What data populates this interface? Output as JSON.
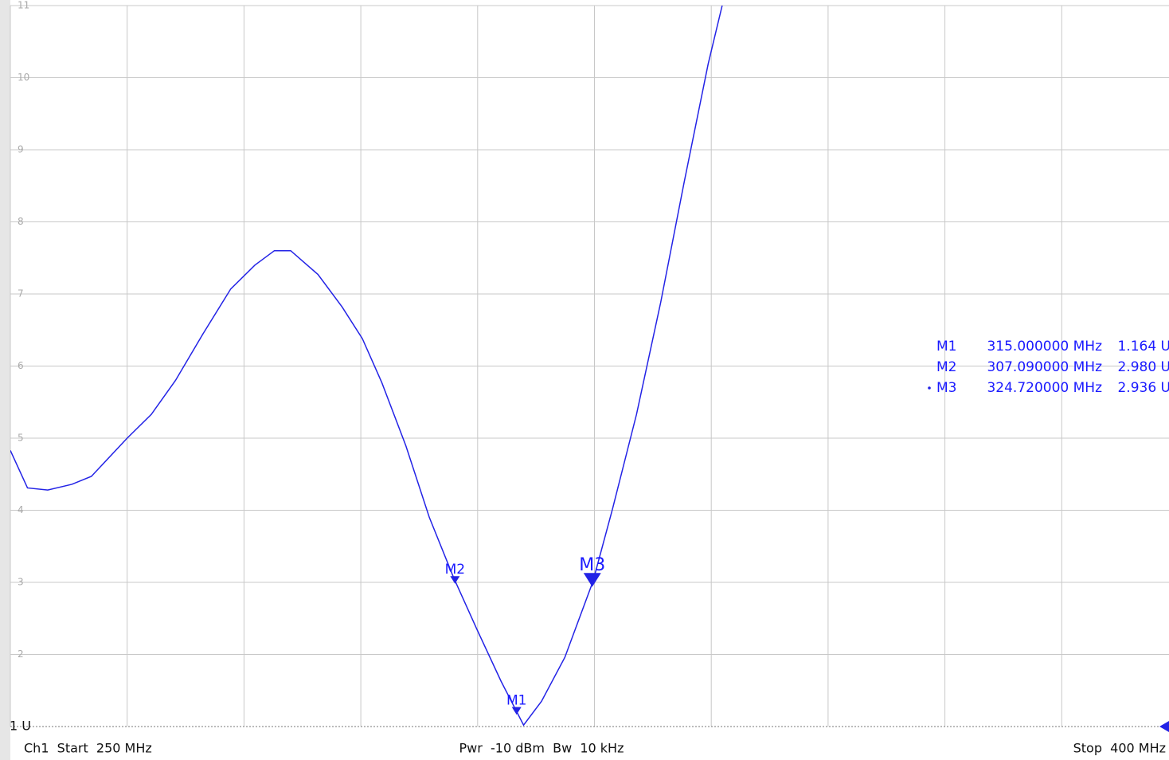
{
  "chart_data": {
    "type": "line",
    "x": [
      250,
      252.2,
      254.8,
      257.9,
      260.4,
      265,
      268.1,
      271.2,
      274.7,
      278.3,
      281.4,
      283.9,
      286,
      289.5,
      292.6,
      295.2,
      297.7,
      300.8,
      303.8,
      306.9,
      309.9,
      313,
      315.9,
      318.2,
      321.2,
      324.8,
      327.3,
      330.4,
      333.5,
      336.5,
      339.6,
      341.4
    ],
    "series": [
      {
        "color": "#2323e6",
        "values": [
          4.83,
          4.31,
          4.28,
          4.36,
          4.47,
          5.0,
          5.33,
          5.8,
          6.44,
          7.07,
          7.4,
          7.6,
          7.6,
          7.27,
          6.82,
          6.38,
          5.77,
          4.89,
          3.9,
          3.07,
          2.35,
          1.63,
          1.02,
          1.35,
          1.96,
          3.01,
          4.01,
          5.33,
          6.88,
          8.54,
          10.19,
          11.0
        ]
      }
    ],
    "xlim": [
      250,
      400
    ],
    "xticks": [
      250,
      265,
      280,
      295,
      310,
      325,
      340,
      355,
      370,
      385,
      400
    ],
    "ylim": [
      1,
      11
    ],
    "yticks": [
      {
        "value": 1,
        "label": "1 U"
      },
      2,
      3,
      4,
      5,
      6,
      7,
      8,
      9,
      10,
      11
    ],
    "grid": true,
    "markers": [
      {
        "name": "M1",
        "x": 315,
        "value": 1.164,
        "x_label": "315.000000 MHz",
        "value_label": "1.164 U"
      },
      {
        "name": "M2",
        "x": 307.09,
        "value": 2.98,
        "x_label": "307.090000 MHz",
        "value_label": "2.980 U"
      },
      {
        "name": "M3",
        "x": 324.72,
        "value": 2.936,
        "x_label": "324.720000 MHz",
        "value_label": "2.936 U",
        "active": true
      }
    ],
    "footer": {
      "start": "Ch1  Start  250 MHz",
      "center": "Pwr  -10 dBm  Bw  10 kHz",
      "stop": "Stop  400 MHz"
    }
  }
}
